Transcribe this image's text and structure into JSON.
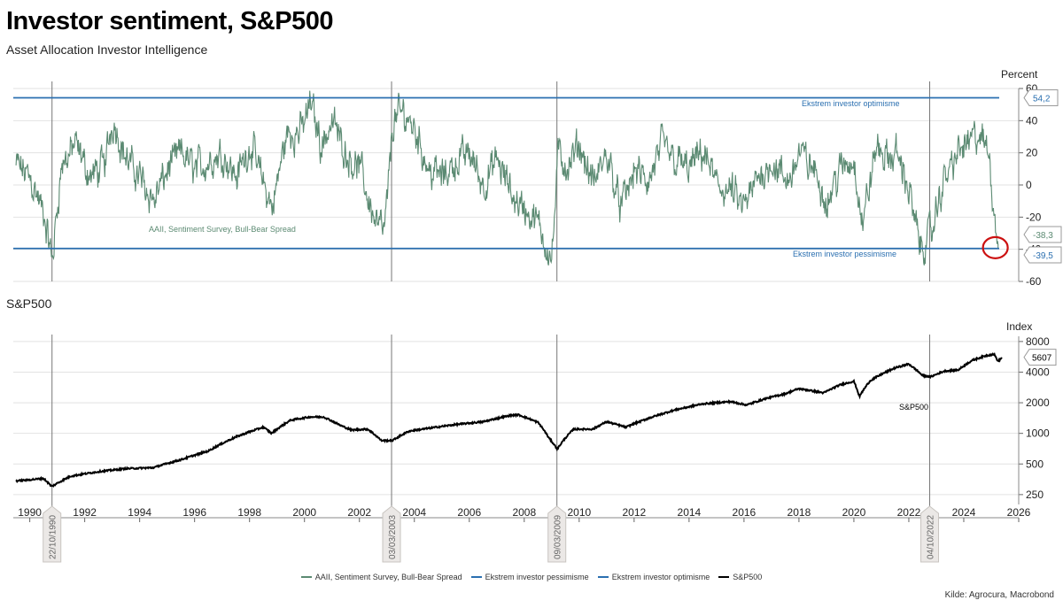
{
  "header": {
    "title": "Investor sentiment, S&P500",
    "subtitle": "Asset Allocation Investor Intelligence"
  },
  "colors": {
    "spread": "#5b8a72",
    "bands": "#2a6fb0",
    "sp500": "#000000",
    "highlight_circle": "#cc1111",
    "grid": "#e2e2e2"
  },
  "chart_data": [
    {
      "type": "line",
      "panel": "sentiment",
      "title": "",
      "unit_label": "Percent",
      "xlim": [
        1989.4,
        2026
      ],
      "ylim": [
        -60,
        60
      ],
      "y_ticks": [
        "-60",
        "-40",
        "-20",
        "0",
        "20",
        "40",
        "60"
      ],
      "grid": true,
      "series": [
        {
          "name": "AAII, Sentiment Survey, Bull-Bear Spread",
          "x": [
            1989.5,
            1990.0,
            1990.5,
            1990.8,
            1991.1,
            1991.6,
            1992.2,
            1992.7,
            1993.0,
            1993.5,
            1994.0,
            1994.5,
            1995.0,
            1995.5,
            1996.0,
            1996.5,
            1997.0,
            1997.5,
            1998.0,
            1998.5,
            1998.8,
            1999.3,
            1999.9,
            2000.2,
            2000.6,
            2001.0,
            2001.5,
            2002.0,
            2002.5,
            2002.9,
            2003.2,
            2003.6,
            2004.0,
            2004.5,
            2005.0,
            2005.5,
            2006.0,
            2006.5,
            2007.0,
            2007.5,
            2008.0,
            2008.5,
            2009.0,
            2009.2,
            2009.6,
            2010.0,
            2010.5,
            2011.0,
            2011.5,
            2012.0,
            2012.5,
            2013.0,
            2013.5,
            2014.0,
            2014.5,
            2015.0,
            2015.5,
            2016.0,
            2016.5,
            2017.0,
            2017.5,
            2018.0,
            2018.5,
            2019.0,
            2019.5,
            2020.0,
            2020.3,
            2020.8,
            2021.2,
            2021.6,
            2022.0,
            2022.4,
            2022.8,
            2023.2,
            2023.6,
            2024.0,
            2024.5,
            2024.9,
            2025.1,
            2025.25
          ],
          "values": [
            12,
            5,
            -20,
            -48,
            10,
            25,
            5,
            12,
            42,
            15,
            5,
            -10,
            10,
            20,
            10,
            15,
            20,
            5,
            25,
            0,
            -15,
            30,
            35,
            52,
            25,
            40,
            20,
            10,
            -20,
            -30,
            40,
            45,
            35,
            10,
            5,
            15,
            20,
            0,
            15,
            -5,
            -15,
            -25,
            -46,
            20,
            10,
            25,
            0,
            20,
            -15,
            10,
            0,
            25,
            15,
            10,
            20,
            0,
            -5,
            -15,
            5,
            15,
            0,
            20,
            10,
            -10,
            10,
            15,
            -25,
            25,
            15,
            20,
            -5,
            -40,
            -30,
            0,
            15,
            25,
            30,
            20,
            -20,
            -39.5
          ]
        },
        {
          "name": "Ekstrem investor pessimisme",
          "values": [
            -39.5,
            -39.5
          ]
        },
        {
          "name": "Ekstrem investor optimisme",
          "values": [
            54.2,
            54.2
          ]
        }
      ],
      "annotations": [
        {
          "text": "AAII, Sentiment Survey, Bull-Bear Spread"
        },
        {
          "text": "Ekstrem investor optimisme"
        },
        {
          "text": "Ekstrem investor pessimisme"
        },
        {
          "text": "54,2"
        },
        {
          "text": "-38,3"
        },
        {
          "text": "-39,5"
        }
      ]
    },
    {
      "type": "line",
      "panel": "sp500",
      "title": "S&P500",
      "unit_label": "Index",
      "scale": "log",
      "xlim": [
        1989.4,
        2026
      ],
      "ylim": [
        200,
        9000
      ],
      "y_ticks": [
        "250",
        "500",
        "1000",
        "2000",
        "4000",
        "8000"
      ],
      "grid": true,
      "series": [
        {
          "name": "S&P500",
          "x": [
            1989.5,
            1990.5,
            1990.8,
            1991.5,
            1992.5,
            1993.5,
            1994.5,
            1995.5,
            1996.5,
            1997.5,
            1998.5,
            1998.8,
            1999.5,
            2000.2,
            2000.7,
            2001.3,
            2001.7,
            2002.3,
            2002.8,
            2003.2,
            2003.8,
            2004.5,
            2005.5,
            2006.5,
            2007.5,
            2007.8,
            2008.5,
            2008.9,
            2009.2,
            2009.8,
            2010.5,
            2011.0,
            2011.7,
            2012.5,
            2013.5,
            2014.5,
            2015.5,
            2016.1,
            2016.8,
            2017.5,
            2018.0,
            2018.9,
            2019.5,
            2020.0,
            2020.2,
            2020.6,
            2021.0,
            2021.5,
            2022.0,
            2022.5,
            2022.8,
            2023.3,
            2023.8,
            2024.3,
            2024.8,
            2025.1,
            2025.25,
            2025.4
          ],
          "values": [
            340,
            360,
            300,
            380,
            420,
            450,
            460,
            550,
            670,
            920,
            1150,
            1000,
            1350,
            1450,
            1450,
            1200,
            1080,
            1100,
            850,
            850,
            1050,
            1120,
            1220,
            1300,
            1500,
            1520,
            1280,
            900,
            700,
            1100,
            1100,
            1300,
            1150,
            1400,
            1700,
            1950,
            2050,
            1900,
            2200,
            2450,
            2750,
            2500,
            3000,
            3250,
            2300,
            3300,
            3800,
            4400,
            4800,
            3700,
            3600,
            4100,
            4200,
            5200,
            5800,
            6000,
            5100,
            5607
          ]
        }
      ],
      "annotations": [
        {
          "text": "S&P500"
        },
        {
          "text": "5607"
        }
      ]
    }
  ],
  "x_axis": {
    "ticks": [
      "1990",
      "1992",
      "1994",
      "1996",
      "1998",
      "2000",
      "2002",
      "2004",
      "2006",
      "2008",
      "2010",
      "2012",
      "2014",
      "2016",
      "2018",
      "2020",
      "2022",
      "2024",
      "2026"
    ],
    "markers": [
      "22/10/1990",
      "03/03/2003",
      "09/03/2009",
      "04/10/2022"
    ]
  },
  "legend": [
    {
      "label": "AAII, Sentiment Survey, Bull-Bear Spread",
      "color": "#5b8a72"
    },
    {
      "label": "Ekstrem investor pessimisme",
      "color": "#2a6fb0"
    },
    {
      "label": "Ekstrem investor optimisme",
      "color": "#2a6fb0"
    },
    {
      "label": "S&P500",
      "color": "#000000"
    }
  ],
  "source": "Kilde: Agrocura, Macrobond"
}
